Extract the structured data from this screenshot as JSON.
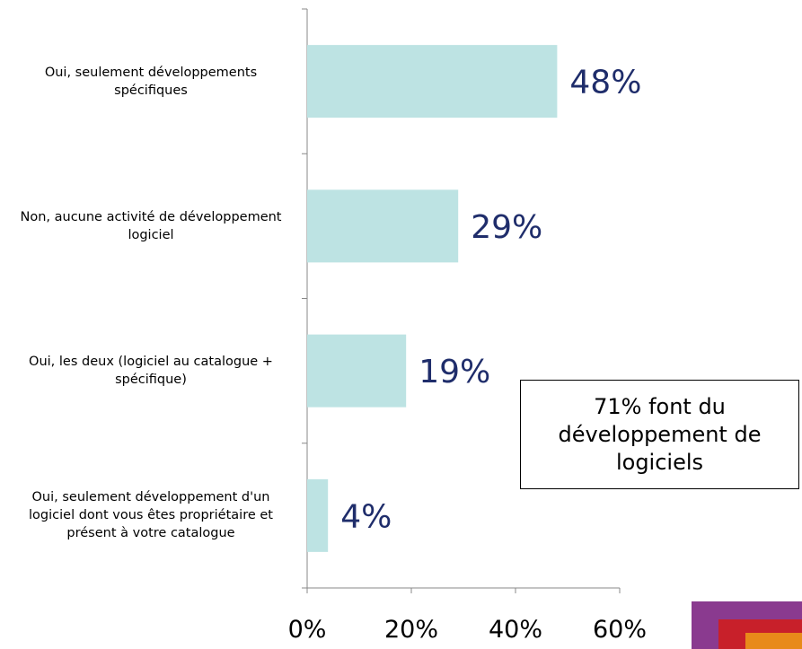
{
  "chart_data": {
    "type": "bar",
    "orientation": "horizontal",
    "categories": [
      "Oui, seulement développements spécifiques",
      "Non, aucune activité de développement logiciel",
      "Oui, les deux (logiciel au catalogue + spécifique)",
      "Oui, seulement développement d'un logiciel dont vous êtes propriétaire et présent à votre catalogue"
    ],
    "values": [
      48,
      29,
      19,
      4
    ],
    "value_labels": [
      "48%",
      "29%",
      "19%",
      "4%"
    ],
    "color": "#bde3e3",
    "xlim": [
      0,
      60
    ],
    "xticks": [
      {
        "value": 0,
        "label": "0%"
      },
      {
        "value": 20,
        "label": "20%"
      },
      {
        "value": 40,
        "label": "40%"
      },
      {
        "value": 60,
        "label": "60%"
      }
    ],
    "annotation": "71% font du développement de logiciels"
  }
}
